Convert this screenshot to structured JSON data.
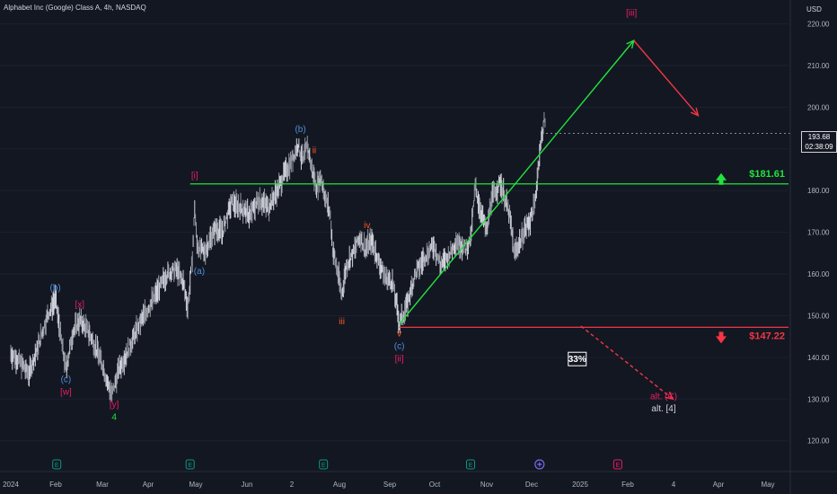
{
  "header": {
    "symbol_title": "Alphabet Inc (Google) Class A, 4h, NASDAQ",
    "currency": "USD"
  },
  "price_badge": {
    "price": "193.68",
    "countdown": "02:38:09"
  },
  "chart_data": {
    "type": "line",
    "title": "Alphabet Inc (Google) Class A, 4h, NASDAQ",
    "xlabel": "",
    "ylabel": "USD",
    "ylim": [
      118,
      224
    ],
    "x_range": [
      0,
      21.5
    ],
    "y_ticks": [
      "220.00",
      "210.00",
      "200.00",
      "190.00",
      "180.00",
      "170.00",
      "160.00",
      "150.00",
      "140.00",
      "130.00",
      "120.00"
    ],
    "y_tick_values": [
      220,
      210,
      200,
      190,
      180,
      170,
      160,
      150,
      140,
      130,
      120
    ],
    "x_ticks": [
      {
        "label": "2024",
        "t": 0
      },
      {
        "label": "Feb",
        "t": 1
      },
      {
        "label": "Mar",
        "t": 2
      },
      {
        "label": "Apr",
        "t": 3
      },
      {
        "label": "May",
        "t": 4
      },
      {
        "label": "Jun",
        "t": 5
      },
      {
        "label": "2",
        "t": 6
      },
      {
        "label": "Aug",
        "t": 7
      },
      {
        "label": "Sep",
        "t": 8
      },
      {
        "label": "Oct",
        "t": 9
      },
      {
        "label": "Nov",
        "t": 10
      },
      {
        "label": "Dec",
        "t": 11
      },
      {
        "label": "2025",
        "t": 12
      },
      {
        "label": "Feb",
        "t": 13
      },
      {
        "label": "4",
        "t": 14
      },
      {
        "label": "Apr",
        "t": 15
      },
      {
        "label": "May",
        "t": 16
      }
    ],
    "series": [
      {
        "values": [
          [
            0,
            141
          ],
          [
            0.2,
            139
          ],
          [
            0.4,
            136
          ],
          [
            0.6,
            143
          ],
          [
            0.8,
            150
          ],
          [
            0.97,
            154
          ],
          [
            1.1,
            144
          ],
          [
            1.2,
            137
          ],
          [
            1.35,
            146
          ],
          [
            1.5,
            149
          ],
          [
            1.7,
            146
          ],
          [
            1.9,
            141
          ],
          [
            2.0,
            138
          ],
          [
            2.1,
            134
          ],
          [
            2.2,
            131
          ],
          [
            2.35,
            137
          ],
          [
            2.6,
            143
          ],
          [
            2.8,
            148
          ],
          [
            3.0,
            152
          ],
          [
            3.2,
            156
          ],
          [
            3.4,
            160
          ],
          [
            3.6,
            161
          ],
          [
            3.75,
            158
          ],
          [
            3.85,
            152
          ],
          [
            3.95,
            164
          ],
          [
            4.0,
            176
          ],
          [
            4.05,
            167
          ],
          [
            4.2,
            165
          ],
          [
            4.45,
            171
          ],
          [
            4.6,
            170
          ],
          [
            4.8,
            177
          ],
          [
            5.0,
            176
          ],
          [
            5.2,
            174
          ],
          [
            5.4,
            178
          ],
          [
            5.6,
            176
          ],
          [
            5.8,
            180
          ],
          [
            5.95,
            184
          ],
          [
            6.1,
            187
          ],
          [
            6.25,
            191
          ],
          [
            6.35,
            187
          ],
          [
            6.45,
            191
          ],
          [
            6.55,
            185
          ],
          [
            6.65,
            181
          ],
          [
            6.75,
            183
          ],
          [
            6.85,
            178
          ],
          [
            6.95,
            174
          ],
          [
            7.0,
            166
          ],
          [
            7.1,
            161
          ],
          [
            7.2,
            155
          ],
          [
            7.3,
            162
          ],
          [
            7.45,
            165
          ],
          [
            7.6,
            169
          ],
          [
            7.7,
            166
          ],
          [
            7.85,
            168
          ],
          [
            8.0,
            163
          ],
          [
            8.15,
            159
          ],
          [
            8.3,
            158
          ],
          [
            8.4,
            152
          ],
          [
            8.45,
            148
          ],
          [
            8.6,
            152
          ],
          [
            8.8,
            160
          ],
          [
            9.0,
            164
          ],
          [
            9.2,
            167
          ],
          [
            9.35,
            162
          ],
          [
            9.5,
            164
          ],
          [
            9.7,
            168
          ],
          [
            9.9,
            166
          ],
          [
            10.0,
            168
          ],
          [
            10.1,
            181
          ],
          [
            10.2,
            176
          ],
          [
            10.35,
            170
          ],
          [
            10.45,
            178
          ],
          [
            10.55,
            180
          ],
          [
            10.65,
            182
          ],
          [
            10.75,
            178
          ],
          [
            10.85,
            174
          ],
          [
            10.95,
            165
          ],
          [
            11.05,
            167
          ],
          [
            11.15,
            170
          ],
          [
            11.3,
            173
          ],
          [
            11.4,
            177
          ],
          [
            11.5,
            189
          ],
          [
            11.55,
            193
          ],
          [
            11.6,
            197
          ],
          [
            11.64,
            193.68
          ]
        ]
      }
    ],
    "levels": [
      {
        "label": "$181.61",
        "value": 181.61,
        "color": "#22e33d"
      },
      {
        "label": "$147.22",
        "value": 147.22,
        "color": "#f23645"
      }
    ],
    "wave_labels": [
      {
        "text": "(b)",
        "t": 0.97,
        "y": 156,
        "color": "#4f8fdc"
      },
      {
        "text": "[x]",
        "t": 1.5,
        "y": 152,
        "color": "#e91e63"
      },
      {
        "text": "(c)",
        "t": 1.2,
        "y": 134,
        "color": "#4f8fdc"
      },
      {
        "text": "[w]",
        "t": 1.2,
        "y": 131,
        "color": "#e91e63"
      },
      {
        "text": "[y]",
        "t": 2.25,
        "y": 128,
        "color": "#e91e63"
      },
      {
        "text": "4",
        "t": 2.25,
        "y": 125,
        "color": "#22e33d"
      },
      {
        "text": "[i]",
        "t": 4.0,
        "y": 183,
        "color": "#e91e63"
      },
      {
        "text": "(a)",
        "t": 4.1,
        "y": 160,
        "color": "#4f8fdc"
      },
      {
        "text": "(b)",
        "t": 6.3,
        "y": 194,
        "color": "#4f8fdc"
      },
      {
        "text": "ii",
        "t": 6.6,
        "y": 189,
        "color": "#ff5722"
      },
      {
        "text": "iii",
        "t": 7.2,
        "y": 148,
        "color": "#ff5722"
      },
      {
        "text": "iv",
        "t": 7.75,
        "y": 171,
        "color": "#ff5722"
      },
      {
        "text": "v",
        "t": 8.45,
        "y": 145,
        "color": "#ff5722"
      },
      {
        "text": "(c)",
        "t": 8.45,
        "y": 142,
        "color": "#4f8fdc"
      },
      {
        "text": "[ii]",
        "t": 8.45,
        "y": 139,
        "color": "#e91e63"
      },
      {
        "text": "[iii]",
        "t": 13.5,
        "y": 222,
        "color": "#e91e63"
      },
      {
        "text": "alt. (C)",
        "t": 14.2,
        "y": 130,
        "color": "#e91e63"
      },
      {
        "text": "alt. [4]",
        "t": 14.2,
        "y": 127,
        "color": "#d1d4dc"
      }
    ],
    "projections": [
      {
        "name": "green",
        "color": "#22e33d",
        "dashed": false,
        "points": [
          [
            8.45,
            148
          ],
          [
            13.55,
            216
          ]
        ]
      },
      {
        "name": "red",
        "color": "#f23645",
        "dashed": false,
        "points": [
          [
            13.55,
            216
          ],
          [
            14.95,
            198
          ]
        ]
      },
      {
        "name": "red-dashed",
        "color": "#f23645",
        "dashed": true,
        "points": [
          [
            12.4,
            147.5
          ],
          [
            14.4,
            130
          ]
        ]
      }
    ],
    "probability_badge": {
      "text": "33%",
      "t": 12.3,
      "y": 139.5
    },
    "event_markers": [
      {
        "t": 1.0,
        "kind": "E",
        "color": "#089981"
      },
      {
        "t": 3.9,
        "kind": "E",
        "color": "#089981"
      },
      {
        "t": 6.8,
        "kind": "E",
        "color": "#089981"
      },
      {
        "t": 10.0,
        "kind": "E",
        "color": "#089981"
      },
      {
        "t": 11.5,
        "kind": "+",
        "color": "#7b68ee"
      },
      {
        "t": 13.2,
        "kind": "E",
        "color": "#e91e63"
      }
    ]
  }
}
